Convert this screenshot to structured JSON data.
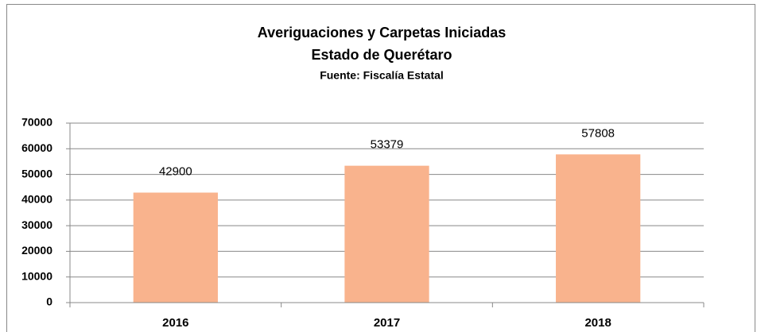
{
  "chart_data": {
    "type": "bar",
    "title": "Averiguaciones y Carpetas Iniciadas",
    "subtitle": "Estado de Querétaro",
    "source": "Fuente: Fiscalía Estatal",
    "categories": [
      "2016",
      "2017",
      "2018"
    ],
    "values": [
      42900,
      53379,
      57808
    ],
    "color": "#f9b38d",
    "ylim": [
      0,
      70000
    ],
    "yticks": [
      0,
      10000,
      20000,
      30000,
      40000,
      50000,
      60000,
      70000
    ],
    "grid": true
  }
}
